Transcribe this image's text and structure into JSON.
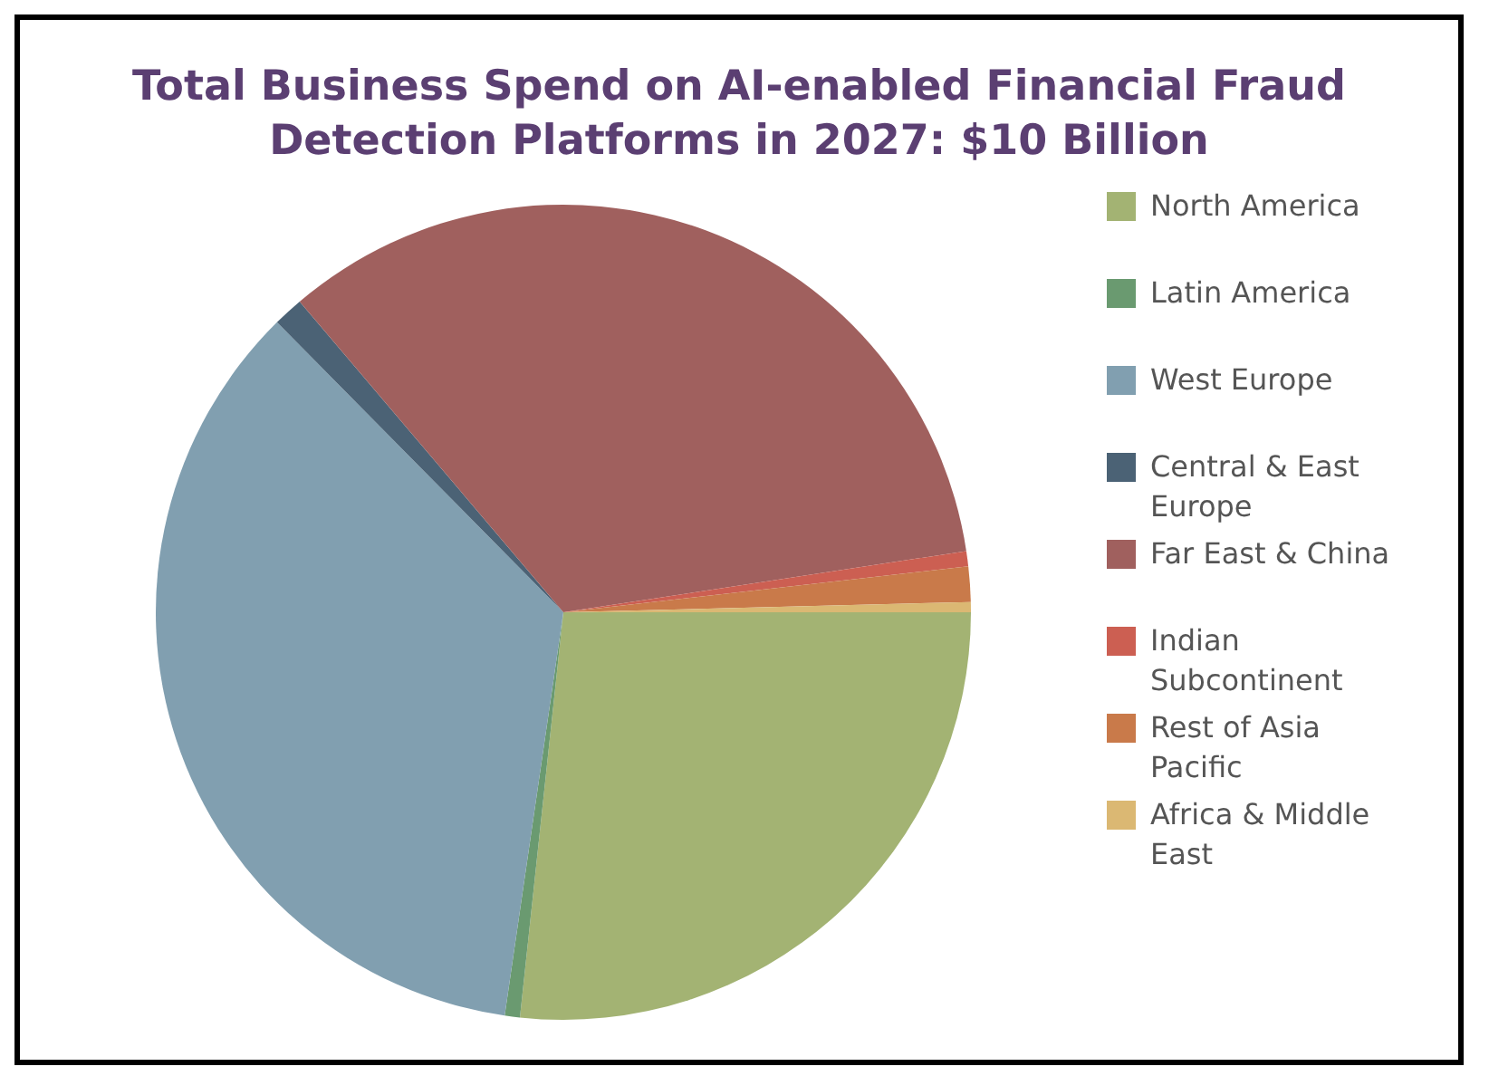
{
  "chart_data": {
    "type": "pie",
    "title": "Total Business Spend on AI-enabled Financial Fraud Detection Platforms in 2027: $10 Billion",
    "categories": [
      "North America",
      "Latin America",
      "West Europe",
      "Central & East Europe",
      "Far East & China",
      "Indian Subcontinent",
      "Rest of Asia Pacific",
      "Africa & Middle East"
    ],
    "values": [
      26.7,
      0.6,
      35.3,
      1.2,
      33.8,
      0.6,
      1.4,
      0.4
    ],
    "colors": [
      "#a3b373",
      "#6a9a70",
      "#819fb0",
      "#4b6275",
      "#a0605e",
      "#cc5f52",
      "#c97a4a",
      "#dbb873"
    ],
    "legend": "right"
  }
}
